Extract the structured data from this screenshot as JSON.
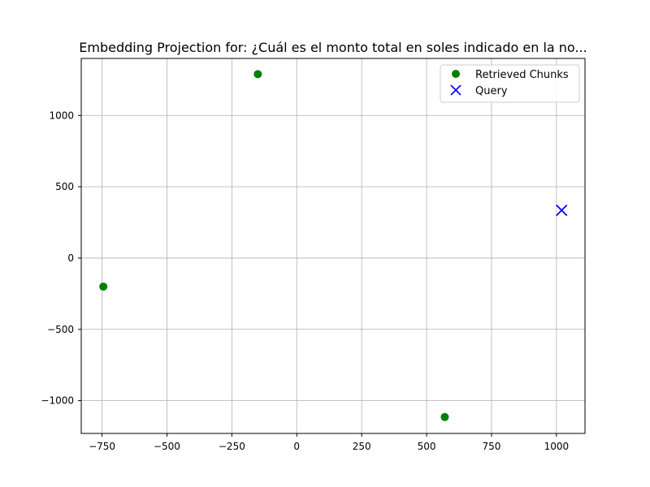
{
  "chart_data": {
    "type": "scatter",
    "title": "Embedding Projection for: ¿Cuál es el monto total en soles indicado en la no...",
    "xlabel": "",
    "ylabel": "",
    "xlim": [
      -830,
      1110
    ],
    "ylim": [
      -1230,
      1400
    ],
    "x_ticks": [
      -750,
      -500,
      -250,
      0,
      250,
      500,
      750,
      1000
    ],
    "y_ticks": [
      -1000,
      -500,
      0,
      500,
      1000
    ],
    "x_tick_labels": [
      "−750",
      "−500",
      "−250",
      "0",
      "250",
      "500",
      "750",
      "1000"
    ],
    "y_tick_labels": [
      "−1000",
      "−500",
      "0",
      "500",
      "1000"
    ],
    "grid": true,
    "legend_position": "top-right",
    "series": [
      {
        "name": "Retrieved Chunks",
        "marker": "circle",
        "color": "#008000",
        "points": [
          {
            "x": -150,
            "y": 1290
          },
          {
            "x": -745,
            "y": -200
          },
          {
            "x": 570,
            "y": -1115
          }
        ]
      },
      {
        "name": "Query",
        "marker": "x",
        "color": "#0000ff",
        "points": [
          {
            "x": 1020,
            "y": 335
          }
        ]
      }
    ]
  }
}
